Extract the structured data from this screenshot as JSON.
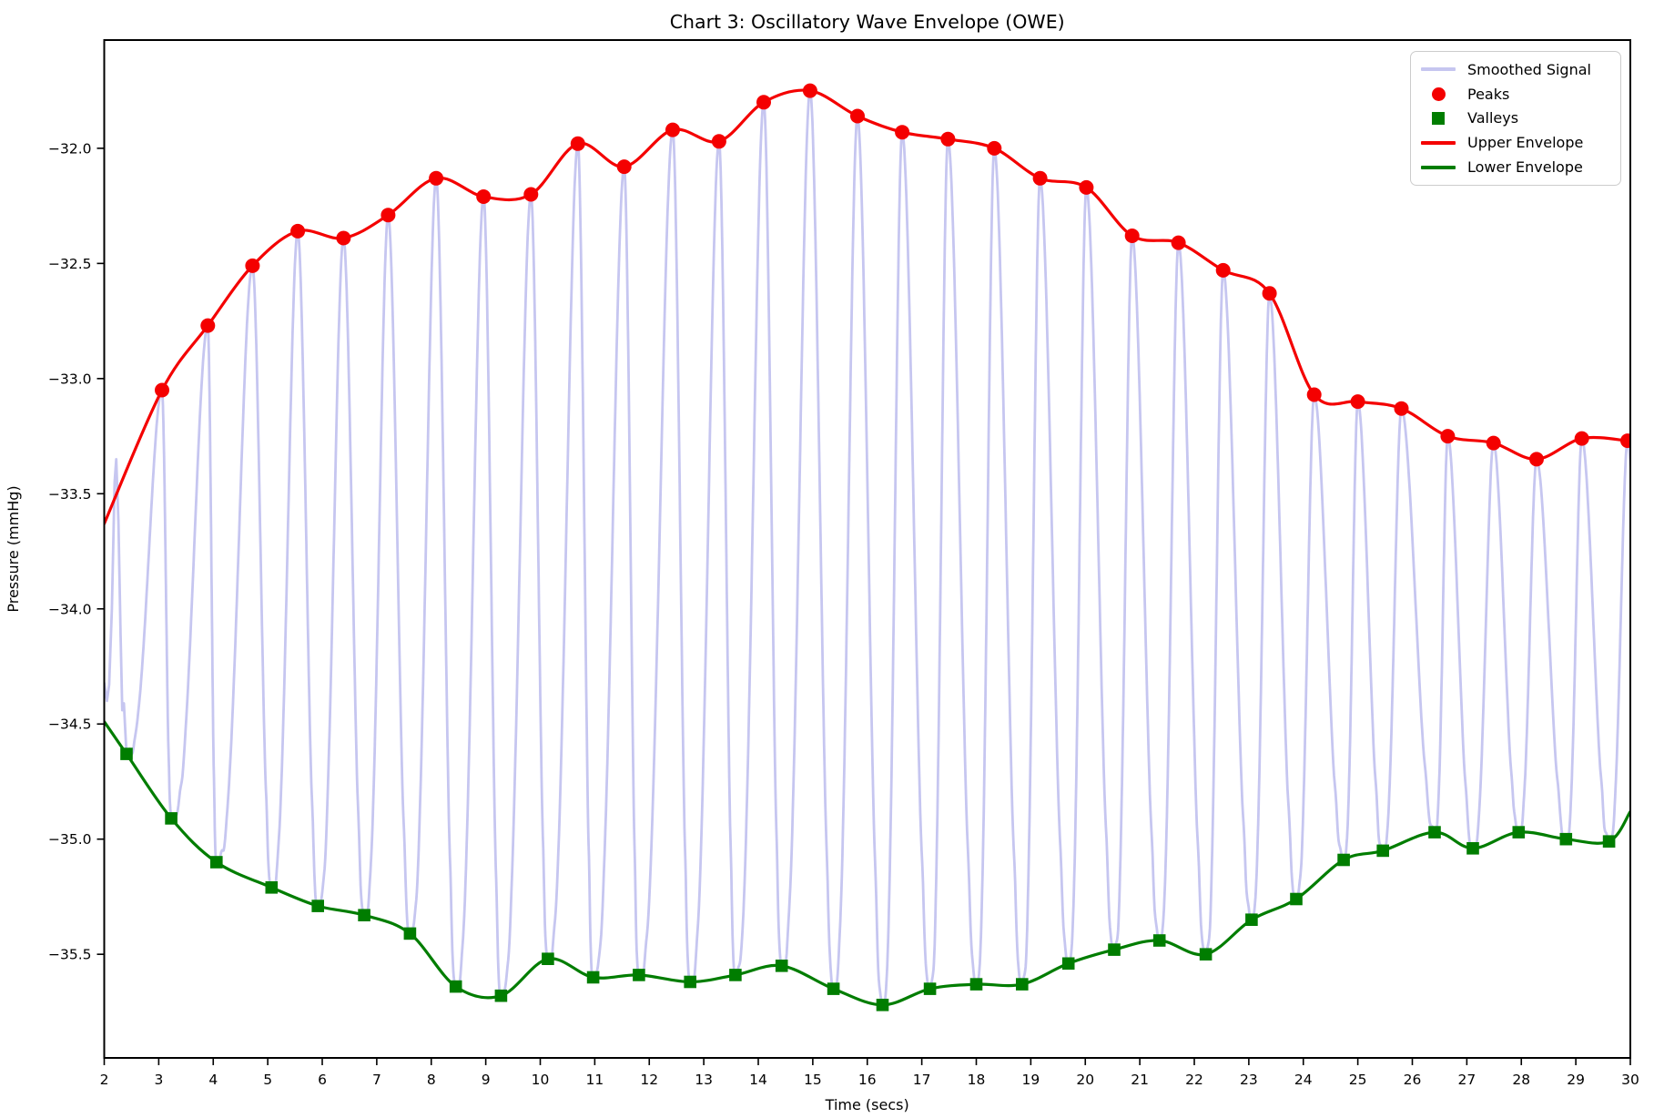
{
  "title": "Chart 3: Oscillatory Wave Envelope (OWE)",
  "axes": {
    "xlabel": "Time (secs)",
    "ylabel": "Pressure (mmHg)",
    "xtick_labels": [
      "2",
      "3",
      "4",
      "5",
      "6",
      "7",
      "8",
      "9",
      "10",
      "11",
      "12",
      "13",
      "14",
      "15",
      "16",
      "17",
      "18",
      "19",
      "20",
      "21",
      "22",
      "23",
      "24",
      "25",
      "26",
      "27",
      "28",
      "29",
      "30"
    ],
    "ytick_labels": [
      "−32.0",
      "−32.5",
      "−33.0",
      "−33.5",
      "−34.0",
      "−34.5",
      "−35.0",
      "−35.5"
    ],
    "yticks": [
      -32.0,
      -32.5,
      -33.0,
      -33.5,
      -34.0,
      -34.5,
      -35.0,
      -35.5
    ],
    "xticks": [
      2,
      3,
      4,
      5,
      6,
      7,
      8,
      9,
      10,
      11,
      12,
      13,
      14,
      15,
      16,
      17,
      18,
      19,
      20,
      21,
      22,
      23,
      24,
      25,
      26,
      27,
      28,
      29,
      30
    ]
  },
  "colors": {
    "signal": "#c6c6f0",
    "red": "#f40000",
    "green": "#007d00",
    "axis": "#000000",
    "legend_border": "#cccccc"
  },
  "legend": {
    "position": "upper right",
    "entries": [
      {
        "label": "Smoothed Signal",
        "marker": "line",
        "color": "#c6c6f0"
      },
      {
        "label": "Peaks",
        "marker": "circle",
        "color": "#f40000"
      },
      {
        "label": "Valleys",
        "marker": "square",
        "color": "#007d00"
      },
      {
        "label": "Upper Envelope",
        "marker": "line",
        "color": "#f40000"
      },
      {
        "label": "Lower Envelope",
        "marker": "line",
        "color": "#007d00"
      }
    ]
  },
  "chart_data": {
    "type": "line",
    "title": "Chart 3: Oscillatory Wave Envelope (OWE)",
    "xlabel": "Time (secs)",
    "ylabel": "Pressure (mmHg)",
    "xlim": [
      2,
      30
    ],
    "ylim": [
      -35.95,
      -31.53
    ],
    "grid": false,
    "legend_position": "upper right",
    "series": [
      {
        "name": "Smoothed Signal",
        "type": "line",
        "color": "#c6c6f0",
        "description": "Oscillatory pressure signal, period ~0.84 s, spanning between lower and upper envelopes with sharp narrow peaks and noisy valleys"
      },
      {
        "name": "Peaks",
        "type": "scatter",
        "marker": "circle",
        "color": "#f40000",
        "points": [
          [
            3.06,
            -33.05
          ],
          [
            3.9,
            -32.77
          ],
          [
            4.72,
            -32.51
          ],
          [
            5.55,
            -32.36
          ],
          [
            6.39,
            -32.39
          ],
          [
            7.21,
            -32.29
          ],
          [
            8.09,
            -32.13
          ],
          [
            8.96,
            -32.21
          ],
          [
            9.83,
            -32.2
          ],
          [
            10.69,
            -31.98
          ],
          [
            11.54,
            -32.08
          ],
          [
            12.43,
            -31.92
          ],
          [
            13.28,
            -31.97
          ],
          [
            14.1,
            -31.8
          ],
          [
            14.95,
            -31.75
          ],
          [
            15.82,
            -31.86
          ],
          [
            16.64,
            -31.93
          ],
          [
            17.48,
            -31.96
          ],
          [
            18.33,
            -32.0
          ],
          [
            19.17,
            -32.13
          ],
          [
            20.02,
            -32.17
          ],
          [
            20.86,
            -32.38
          ],
          [
            21.71,
            -32.41
          ],
          [
            22.53,
            -32.53
          ],
          [
            23.38,
            -32.63
          ],
          [
            24.2,
            -33.07
          ],
          [
            25.0,
            -33.1
          ],
          [
            25.8,
            -33.13
          ],
          [
            26.65,
            -33.25
          ],
          [
            27.49,
            -33.28
          ],
          [
            28.28,
            -33.35
          ],
          [
            29.11,
            -33.26
          ],
          [
            29.95,
            -33.27
          ]
        ]
      },
      {
        "name": "Valleys",
        "type": "scatter",
        "marker": "square",
        "color": "#007d00",
        "points": [
          [
            2.41,
            -34.63
          ],
          [
            3.23,
            -34.91
          ],
          [
            4.06,
            -35.1
          ],
          [
            5.07,
            -35.21
          ],
          [
            5.92,
            -35.29
          ],
          [
            6.77,
            -35.33
          ],
          [
            7.61,
            -35.41
          ],
          [
            8.45,
            -35.64
          ],
          [
            9.28,
            -35.68
          ],
          [
            10.14,
            -35.52
          ],
          [
            10.97,
            -35.6
          ],
          [
            11.81,
            -35.59
          ],
          [
            12.75,
            -35.62
          ],
          [
            13.58,
            -35.59
          ],
          [
            14.43,
            -35.55
          ],
          [
            15.38,
            -35.65
          ],
          [
            16.28,
            -35.72
          ],
          [
            17.15,
            -35.65
          ],
          [
            18.0,
            -35.63
          ],
          [
            18.84,
            -35.63
          ],
          [
            19.69,
            -35.54
          ],
          [
            20.53,
            -35.48
          ],
          [
            21.36,
            -35.44
          ],
          [
            22.21,
            -35.5
          ],
          [
            23.05,
            -35.35
          ],
          [
            23.87,
            -35.26
          ],
          [
            24.74,
            -35.09
          ],
          [
            25.46,
            -35.05
          ],
          [
            26.41,
            -34.97
          ],
          [
            27.11,
            -35.04
          ],
          [
            27.95,
            -34.97
          ],
          [
            28.82,
            -35.0
          ],
          [
            29.61,
            -35.01
          ]
        ]
      },
      {
        "name": "Upper Envelope",
        "type": "line",
        "color": "#f40000",
        "start_point": [
          2.0,
          -33.63
        ],
        "through": "Peaks"
      },
      {
        "name": "Lower Envelope",
        "type": "line",
        "color": "#007d00",
        "start_point": [
          2.0,
          -34.49
        ],
        "end_point": [
          30.0,
          -34.88
        ],
        "through": "Valleys"
      }
    ],
    "signal": {
      "prelude": [
        [
          2.0,
          -34.32
        ],
        [
          2.05,
          -34.4
        ],
        [
          2.09,
          -34.33
        ],
        [
          2.14,
          -34.0
        ],
        [
          2.19,
          -33.45
        ],
        [
          2.22,
          -33.35
        ],
        [
          2.26,
          -33.62
        ],
        [
          2.3,
          -34.12
        ],
        [
          2.33,
          -34.44
        ],
        [
          2.36,
          -34.41
        ],
        [
          2.39,
          -34.55
        ],
        [
          2.41,
          -34.63
        ]
      ],
      "virtual_end_valley": [
        30.35,
        -35.0
      ],
      "notch": {
        "center": 0.74,
        "width": 0.055,
        "amp": 0.024
      },
      "noise": {
        "amp1": 0.03,
        "f1": 41.0,
        "ph1": 1.3,
        "amp2": 0.022,
        "f2": 67.0
      }
    }
  }
}
